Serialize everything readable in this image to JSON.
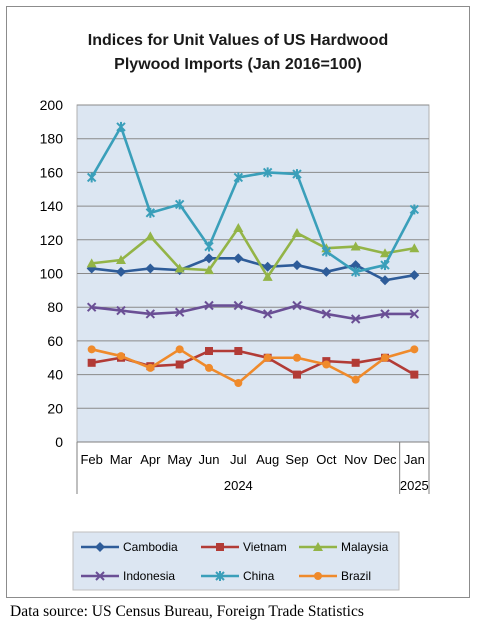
{
  "chart_data": {
    "type": "line",
    "title_lines": [
      "Indices for Unit Values of US Hardwood",
      "Plywood Imports (Jan 2016=100)"
    ],
    "categories": [
      "Feb",
      "Mar",
      "Apr",
      "May",
      "Jun",
      "Jul",
      "Aug",
      "Sep",
      "Oct",
      "Nov",
      "Dec",
      "Jan"
    ],
    "year_groups": [
      {
        "label": "2024",
        "span": 11
      },
      {
        "label": "2025",
        "span": 1
      }
    ],
    "ylim": [
      0,
      200
    ],
    "yticks": [
      0,
      20,
      40,
      60,
      80,
      100,
      120,
      140,
      160,
      180,
      200
    ],
    "grid": true,
    "legend_position": "bottom",
    "series": [
      {
        "name": "Cambodia",
        "color": "#2e5c99",
        "marker": "diamond",
        "values": [
          103,
          101,
          103,
          102,
          109,
          109,
          104,
          105,
          101,
          105,
          96,
          99
        ]
      },
      {
        "name": "Vietnam",
        "color": "#b23b36",
        "marker": "square",
        "values": [
          47,
          50,
          45,
          46,
          54,
          54,
          50,
          40,
          48,
          47,
          50,
          40
        ]
      },
      {
        "name": "Malaysia",
        "color": "#93b447",
        "marker": "triangle",
        "values": [
          106,
          108,
          122,
          103,
          102,
          127,
          98,
          124,
          115,
          116,
          112,
          115
        ]
      },
      {
        "name": "Indonesia",
        "color": "#6a4f95",
        "marker": "x",
        "values": [
          80,
          78,
          76,
          77,
          81,
          81,
          76,
          81,
          76,
          73,
          76,
          76
        ]
      },
      {
        "name": "China",
        "color": "#3a9fba",
        "marker": "star",
        "values": [
          157,
          187,
          136,
          141,
          116,
          157,
          160,
          159,
          113,
          101,
          105,
          138
        ]
      },
      {
        "name": "Brazil",
        "color": "#ef8a2b",
        "marker": "circle",
        "values": [
          55,
          51,
          44,
          55,
          44,
          35,
          50,
          50,
          46,
          37,
          50,
          55
        ]
      }
    ]
  },
  "source_text": "Data source: US Census Bureau, Foreign Trade Statistics"
}
